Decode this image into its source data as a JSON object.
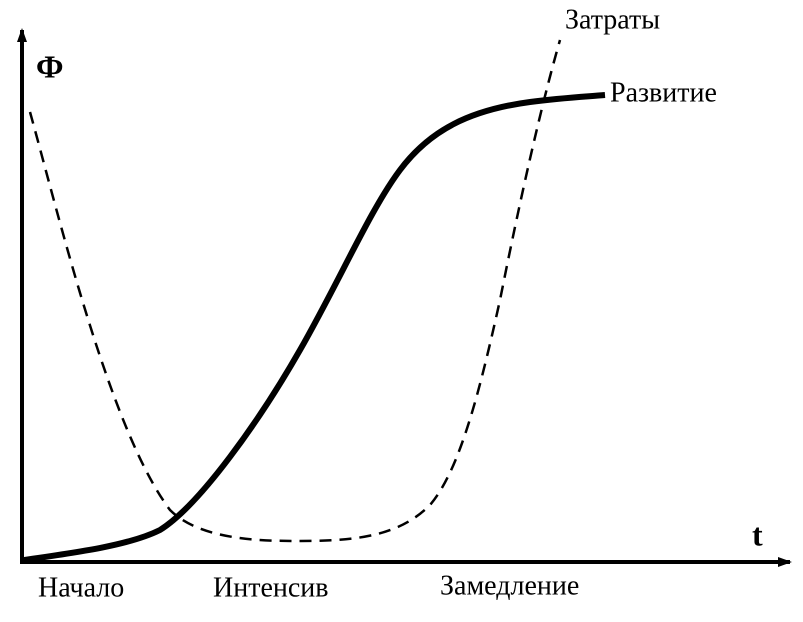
{
  "axes": {
    "y_label": "Ф",
    "x_label": "t"
  },
  "curves": [
    {
      "label": "Затраты"
    },
    {
      "label": "Развитие"
    }
  ],
  "phases": [
    "Начало",
    "Интенсив",
    "Замедление"
  ]
}
